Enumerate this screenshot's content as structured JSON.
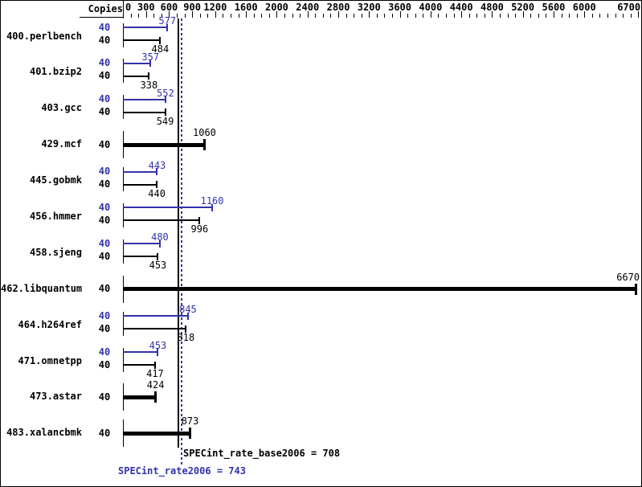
{
  "header": {
    "copies_label": "Copies"
  },
  "chart_data": {
    "type": "bar",
    "orientation": "horizontal",
    "grid": false,
    "legend": "none",
    "axis": {
      "min": 0,
      "max": 6740,
      "minor_tick_step": 100,
      "tick_labels": [
        0,
        300,
        600,
        900,
        1200,
        1600,
        2000,
        2400,
        2800,
        3200,
        3600,
        4000,
        4400,
        4800,
        5200,
        5600,
        6000,
        6700
      ]
    },
    "colors": {
      "peak": "#3232aa",
      "base": "#000000"
    },
    "benchmarks": [
      {
        "name": "400.perlbench",
        "peak_copies": 40,
        "peak": 577,
        "base_copies": 40,
        "base": 484,
        "single_bar": false
      },
      {
        "name": "401.bzip2",
        "peak_copies": 40,
        "peak": 357,
        "base_copies": 40,
        "base": 338,
        "single_bar": false
      },
      {
        "name": "403.gcc",
        "peak_copies": 40,
        "peak": 552,
        "base_copies": 40,
        "base": 549,
        "single_bar": false
      },
      {
        "name": "429.mcf",
        "base_copies": 40,
        "base": 1060,
        "single_bar": true
      },
      {
        "name": "445.gobmk",
        "peak_copies": 40,
        "peak": 443,
        "base_copies": 40,
        "base": 440,
        "single_bar": false
      },
      {
        "name": "456.hmmer",
        "peak_copies": 40,
        "peak": 1160,
        "base_copies": 40,
        "base": 996,
        "single_bar": false
      },
      {
        "name": "458.sjeng",
        "peak_copies": 40,
        "peak": 480,
        "base_copies": 40,
        "base": 453,
        "single_bar": false
      },
      {
        "name": "462.libquantum",
        "base_copies": 40,
        "base": 6670,
        "single_bar": true
      },
      {
        "name": "464.h264ref",
        "peak_copies": 40,
        "peak": 845,
        "base_copies": 40,
        "base": 818,
        "single_bar": false
      },
      {
        "name": "471.omnetpp",
        "peak_copies": 40,
        "peak": 453,
        "base_copies": 40,
        "base": 417,
        "single_bar": false
      },
      {
        "name": "473.astar",
        "base_copies": 40,
        "base": 424,
        "single_bar": true
      },
      {
        "name": "483.xalancbmk",
        "base_copies": 40,
        "base": 873,
        "single_bar": true
      }
    ],
    "reference_lines": [
      {
        "name": "base",
        "value": 708,
        "style": "solid",
        "color": "#000000"
      },
      {
        "name": "peak",
        "value": 743,
        "style": "dotted",
        "color": "#3232aa"
      }
    ],
    "summary": {
      "base": {
        "label": "SPECint_rate_base2006",
        "value": 708
      },
      "peak": {
        "label": "SPECint_rate2006",
        "value": 743
      }
    }
  }
}
